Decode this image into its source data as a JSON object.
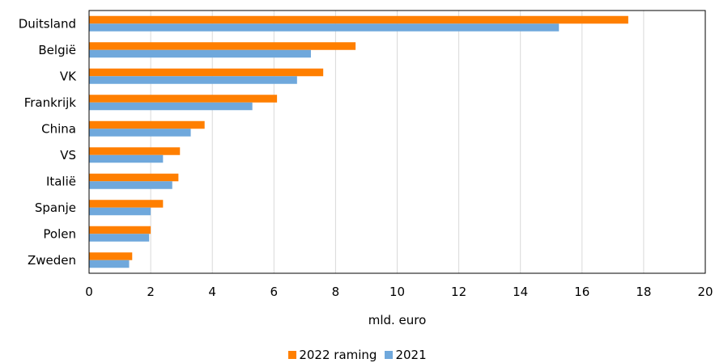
{
  "chart_data": {
    "type": "bar",
    "orientation": "horizontal",
    "categories": [
      "Duitsland",
      "België",
      "VK",
      "Frankrijk",
      "China",
      "VS",
      "Italië",
      "Spanje",
      "Polen",
      "Zweden"
    ],
    "series": [
      {
        "name": "2022 raming",
        "color": "#FF7F00",
        "values": [
          17.5,
          8.65,
          7.6,
          6.1,
          3.75,
          2.95,
          2.9,
          2.4,
          2.0,
          1.4
        ]
      },
      {
        "name": "2021",
        "color": "#6FA8DC",
        "values": [
          15.25,
          7.2,
          6.75,
          5.3,
          3.3,
          2.4,
          2.7,
          2.0,
          1.95,
          1.3
        ]
      }
    ],
    "xlabel": "mld. euro",
    "xlim": [
      0,
      20
    ],
    "xticks": [
      "0",
      "2",
      "4",
      "6",
      "8",
      "10",
      "12",
      "14",
      "16",
      "18",
      "20"
    ],
    "grid": "vertical",
    "legend_position": "bottom"
  }
}
